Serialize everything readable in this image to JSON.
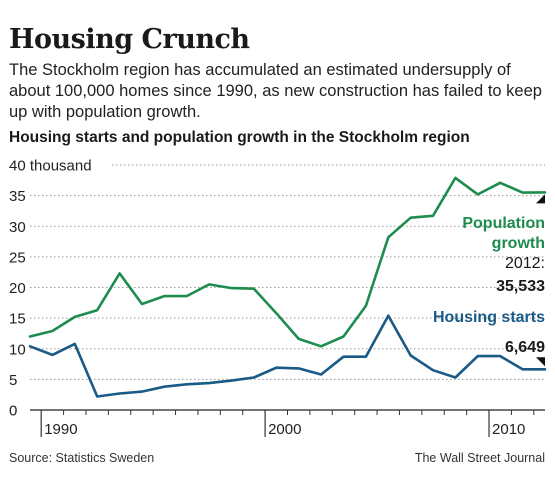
{
  "title": "Housing Crunch",
  "subtitle": "The Stockholm region has accumulated an estimated undersupply of about 100,000 homes since 1990, as new construction has failed to keep up with population growth.",
  "chart_heading": "Housing starts and population growth in the Stockholm region",
  "source": "Source: Statistics Sweden",
  "credit": "The Wall Street Journal",
  "chart_data": {
    "type": "line",
    "title": "Housing starts and population growth in the Stockholm region",
    "ylim": [
      0,
      40
    ],
    "xlim": [
      1989.5,
      2012.5
    ],
    "yticks": [
      0,
      5,
      10,
      15,
      20,
      25,
      30,
      35,
      40
    ],
    "ytick_labels": [
      "0",
      "5",
      "10",
      "15",
      "20",
      "25",
      "30",
      "35",
      "40 thousand"
    ],
    "xticks": [
      1990,
      2000,
      2010
    ],
    "xtick_labels": [
      "1990",
      "2000",
      "2010"
    ],
    "grid": "horizontal dotted",
    "x": [
      1989.5,
      1990.5,
      1991.5,
      1992.5,
      1993.5,
      1994.5,
      1995.5,
      1996.5,
      1997.5,
      1998.5,
      1999.5,
      2000.5,
      2001.5,
      2002.5,
      2003.5,
      2004.5,
      2005.5,
      2006.5,
      2007.5,
      2008.5,
      2009.5,
      2010.5,
      2011.5,
      2012.5
    ],
    "series": [
      {
        "name": "Population growth",
        "color": "#1e8c4e",
        "values": [
          12.0,
          12.9,
          15.2,
          16.3,
          22.3,
          17.3,
          18.6,
          18.6,
          20.5,
          19.9,
          19.8,
          15.8,
          11.6,
          10.4,
          12.0,
          17.0,
          28.2,
          31.4,
          31.7,
          37.9,
          35.2,
          37.1,
          35.5,
          35.533
        ]
      },
      {
        "name": "Housing starts",
        "color": "#1a5a86",
        "values": [
          10.4,
          9.0,
          10.8,
          2.2,
          2.7,
          3.0,
          3.8,
          4.2,
          4.4,
          4.8,
          5.3,
          6.9,
          6.8,
          5.8,
          8.7,
          8.7,
          15.4,
          8.9,
          6.5,
          5.3,
          8.8,
          8.8,
          6.649,
          6.649
        ]
      }
    ],
    "annotations": [
      {
        "series": "Population growth",
        "label": "Population growth",
        "year_label": "2012:",
        "value_label": "35,533"
      },
      {
        "series": "Housing starts",
        "label": "Housing starts",
        "value_label": "6,649"
      }
    ]
  }
}
